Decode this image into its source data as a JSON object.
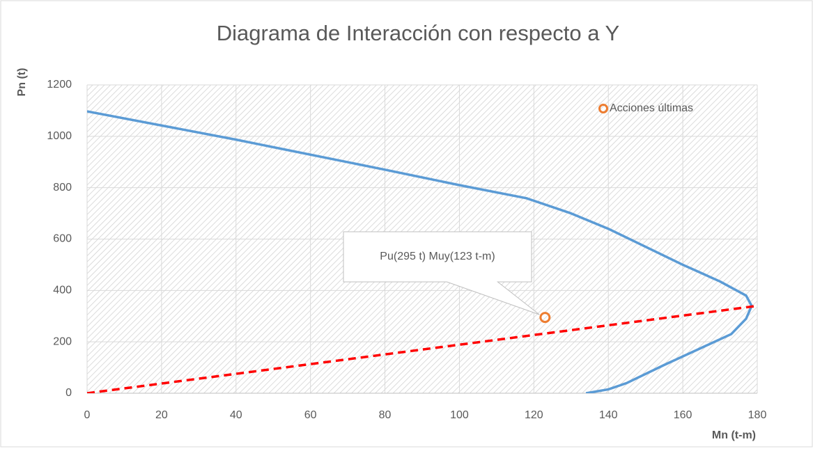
{
  "chart_data": {
    "type": "scatter",
    "title": "Diagrama de Interacción con respecto a Y",
    "x_label": "Mn (t-m)",
    "y_label": "Pn (t)",
    "xlim": [
      0,
      180
    ],
    "xticks": [
      0,
      20,
      40,
      60,
      80,
      100,
      120,
      140,
      160,
      180
    ],
    "ylim": [
      0,
      1200
    ],
    "yticks": [
      0,
      200,
      400,
      600,
      800,
      1000,
      1200
    ],
    "grid": true,
    "legend": "top-right",
    "series": [
      {
        "color": "#5b9bd5",
        "style": "solid",
        "x": [
          0,
          40,
          80,
          100,
          118,
          130,
          140,
          150,
          160,
          170,
          177,
          178.5,
          177,
          173,
          164,
          155,
          145,
          140,
          134
        ],
        "values": [
          1097,
          987,
          870,
          810,
          759,
          700,
          640,
          570,
          500,
          435,
          380,
          340,
          290,
          230,
          170,
          110,
          40,
          15,
          0
        ]
      },
      {
        "color": "#ff0000",
        "style": "dashed",
        "x": [
          0,
          180
        ],
        "values": [
          0,
          340
        ]
      },
      {
        "name": "Acciones últimas",
        "color": "#ed7d31",
        "style": "marker",
        "x": [
          123
        ],
        "values": [
          295
        ]
      }
    ],
    "annotation": "Pu(295 t) Muy(123 t-m)"
  }
}
